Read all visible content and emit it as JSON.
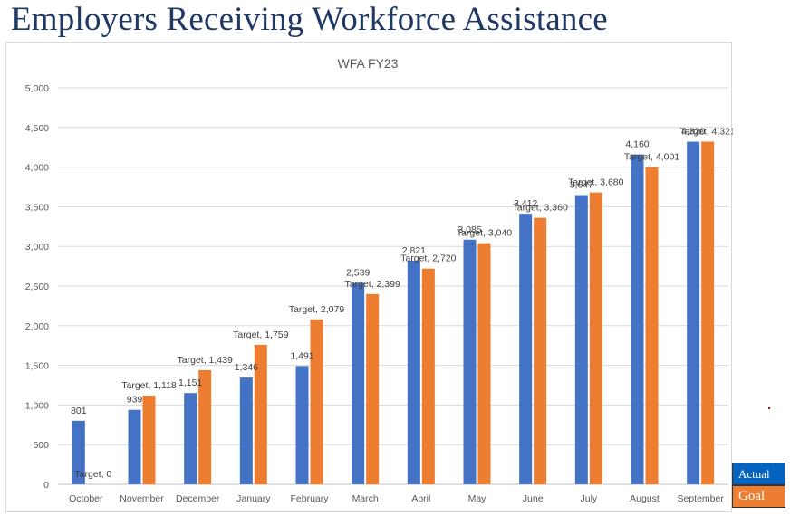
{
  "page": {
    "title": "Employers Receiving Workforce Assistance"
  },
  "legend": {
    "actual_label": "Actual",
    "goal_label": "Goal"
  },
  "colors": {
    "actual": "#4472c4",
    "goal": "#ed7d31",
    "title": "#1f3864",
    "grid": "#d9d9d9"
  },
  "chart_data": {
    "type": "bar",
    "title": "WFA FY23",
    "categories": [
      "October",
      "November",
      "December",
      "January",
      "February",
      "March",
      "April",
      "May",
      "June",
      "July",
      "August",
      "September"
    ],
    "ylim": [
      0,
      5000
    ],
    "yticks": [
      "0",
      "500",
      "1,000",
      "1,500",
      "2,000",
      "2,500",
      "3,000",
      "3,500",
      "4,000",
      "4,500",
      "5,000"
    ],
    "grid": true,
    "series": [
      {
        "values": [
          801,
          939,
          1151,
          1346,
          1491,
          2539,
          2821,
          3085,
          3412,
          3647,
          4160,
          4320
        ],
        "labels": [
          "801",
          "939",
          "1,151",
          "1,346",
          "1,491",
          "2,539",
          "2,821",
          "3,085",
          "3,412",
          "3,647",
          "4,160",
          "4,320"
        ]
      },
      {
        "values": [
          0,
          1118,
          1439,
          1759,
          2079,
          2399,
          2720,
          3040,
          3360,
          3680,
          4001,
          4321
        ],
        "labels": [
          "Target, 0",
          "Target, 1,118",
          "Target, 1,439",
          "Target, 1,759",
          "Target, 2,079",
          "Target, 2,399",
          "Target, 2,720",
          "Target, 3,040",
          "Target, 3,360",
          "Target, 3,680",
          "Target, 4,001",
          "Target, 4,321"
        ]
      }
    ]
  }
}
